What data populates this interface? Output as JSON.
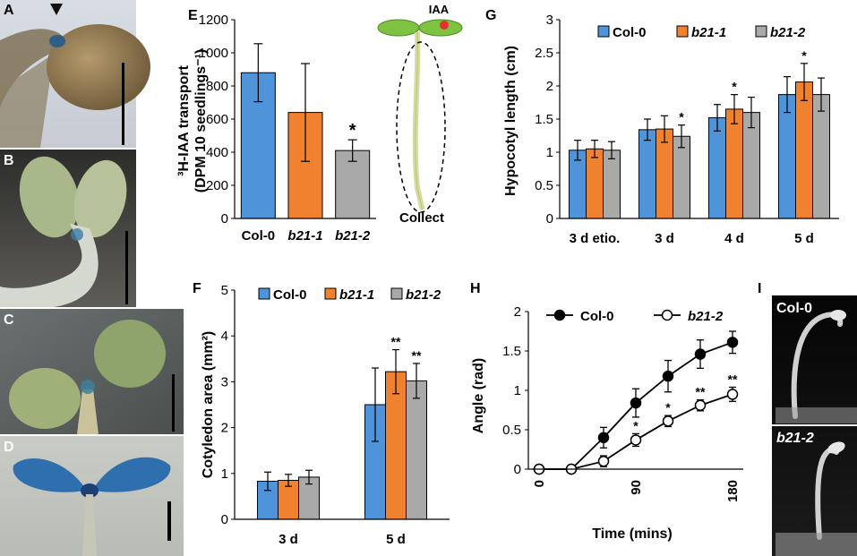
{
  "colors": {
    "col0": "#4f93d8",
    "b21_1": "#f0822f",
    "b21_2": "#a9a9a9"
  },
  "photos": [
    {
      "label": "A",
      "scale_bar": true,
      "arrowhead": true
    },
    {
      "label": "B",
      "scale_bar": true
    },
    {
      "label": "C",
      "scale_bar": true
    },
    {
      "label": "D",
      "scale_bar": true
    },
    {
      "label": "I",
      "sub_labels": [
        "Col-0",
        "b21-2"
      ]
    }
  ],
  "chart_data": [
    {
      "panel": "E",
      "type": "bar",
      "title": "",
      "ylabel_line1": "³H-IAA transport",
      "ylabel_line2": "(DPM 10 seedlings⁻¹)",
      "categories": [
        "Col-0",
        "b21-1",
        "b21-2"
      ],
      "italic_categories": [
        false,
        true,
        true
      ],
      "values": [
        880,
        640,
        410
      ],
      "errors": [
        175,
        295,
        65
      ],
      "significance": [
        "",
        "",
        "*"
      ],
      "ylim": [
        0,
        1200
      ],
      "yticks": [
        0,
        200,
        400,
        600,
        800,
        1000,
        1200
      ],
      "inset": {
        "top_label": "IAA",
        "bottom_label": "Collect"
      }
    },
    {
      "panel": "F",
      "type": "bar",
      "ylabel": "Cotyledon area (mm²)",
      "categories": [
        "3 d",
        "5 d"
      ],
      "series": [
        {
          "name": "Col-0",
          "italic": false,
          "values": [
            0.83,
            2.5
          ],
          "errors": [
            0.2,
            0.8
          ],
          "significance": [
            "",
            ""
          ]
        },
        {
          "name": "b21-1",
          "italic": true,
          "values": [
            0.85,
            3.22
          ],
          "errors": [
            0.13,
            0.48
          ],
          "significance": [
            "",
            "**"
          ]
        },
        {
          "name": "b21-2",
          "italic": true,
          "values": [
            0.92,
            3.02
          ],
          "errors": [
            0.15,
            0.38
          ],
          "significance": [
            "",
            "**"
          ]
        }
      ],
      "ylim": [
        0,
        5
      ],
      "yticks": [
        0,
        1,
        2,
        3,
        4,
        5
      ],
      "legend": "top"
    },
    {
      "panel": "G",
      "type": "bar",
      "ylabel": "Hypocotyl length (cm)",
      "categories": [
        "3 d etio.",
        "3 d",
        "4 d",
        "5 d"
      ],
      "series": [
        {
          "name": "Col-0",
          "italic": false,
          "values": [
            1.03,
            1.34,
            1.52,
            1.87
          ],
          "errors": [
            0.15,
            0.16,
            0.2,
            0.27
          ],
          "significance": [
            "",
            "",
            "",
            ""
          ]
        },
        {
          "name": "b21-1",
          "italic": true,
          "values": [
            1.05,
            1.35,
            1.65,
            2.06
          ],
          "errors": [
            0.13,
            0.2,
            0.22,
            0.28
          ],
          "significance": [
            "",
            "",
            "*",
            "*"
          ]
        },
        {
          "name": "b21-2",
          "italic": true,
          "values": [
            1.03,
            1.24,
            1.6,
            1.87
          ],
          "errors": [
            0.13,
            0.17,
            0.23,
            0.25
          ],
          "significance": [
            "",
            "*",
            "",
            ""
          ]
        }
      ],
      "ylim": [
        0,
        3
      ],
      "yticks": [
        "0",
        "0.5",
        "1",
        "1.5",
        "2",
        "2.5",
        "3"
      ],
      "legend": "top"
    },
    {
      "panel": "H",
      "type": "line",
      "xlabel": "Time (mins)",
      "ylabel": "Angle (rad)",
      "x": [
        0,
        30,
        60,
        90,
        120,
        150,
        180
      ],
      "xticks": [
        "0",
        "90",
        "180"
      ],
      "xlim": [
        0,
        180
      ],
      "ylim": [
        0,
        2
      ],
      "yticks": [
        "0",
        "0.5",
        "1",
        "1.5",
        "2"
      ],
      "series": [
        {
          "name": "Col-0",
          "italic": false,
          "filled": true,
          "values": [
            0,
            0,
            0.4,
            0.84,
            1.18,
            1.46,
            1.61
          ],
          "errors": [
            0,
            0,
            0.13,
            0.18,
            0.2,
            0.18,
            0.14
          ],
          "significance": [
            "",
            "",
            "",
            "",
            "",
            "",
            ""
          ]
        },
        {
          "name": "b21-2",
          "italic": true,
          "filled": false,
          "values": [
            0,
            0,
            0.1,
            0.37,
            0.61,
            0.81,
            0.95
          ],
          "errors": [
            0,
            0,
            0.07,
            0.08,
            0.07,
            0.07,
            0.09
          ],
          "significance": [
            "",
            "",
            "",
            "*",
            "*",
            "**",
            "**"
          ]
        }
      ],
      "legend": "top"
    }
  ]
}
